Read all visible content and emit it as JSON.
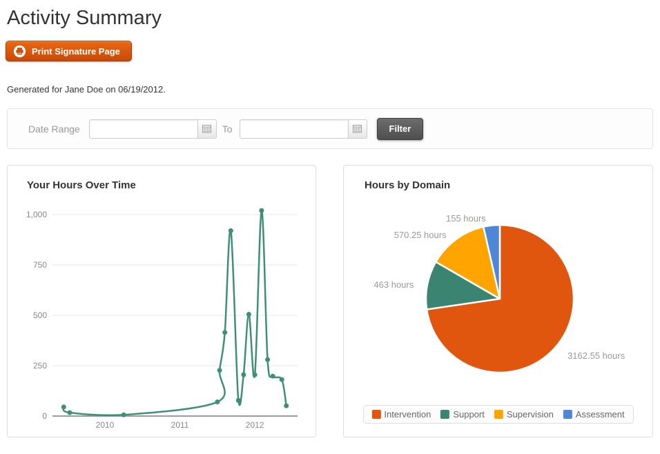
{
  "page": {
    "title": "Activity Summary",
    "print_button_label": "Print Signature Page",
    "generated_note": "Generated for Jane Doe on 06/19/2012."
  },
  "filter": {
    "date_range_label": "Date Range",
    "to_label": "To",
    "from_value": "",
    "to_value": "",
    "filter_button_label": "Filter"
  },
  "icons": {
    "print_button": "printer-icon",
    "date_inputs": "calendar-icon"
  },
  "colors": {
    "button_orange": "#D85509",
    "line_green": "#3E8E78",
    "pie_intervention": "#E0560F",
    "pie_support": "#3A8471",
    "pie_supervision": "#FFA400",
    "pie_assessment": "#4E86D8",
    "axis_text": "#888888",
    "pie_label_text": "#999999"
  },
  "chart_data": [
    {
      "type": "line",
      "title": "Your Hours Over Time",
      "series": [
        {
          "name": "Hours",
          "color": "#3E8E78",
          "x": [
            2009.45,
            2009.53,
            2010.25,
            2011.5,
            2011.53,
            2011.6,
            2011.68,
            2011.78,
            2011.85,
            2011.92,
            2012.0,
            2012.09,
            2012.17,
            2012.24,
            2012.36,
            2012.42
          ],
          "y": [
            45,
            17,
            6,
            70,
            227,
            415,
            920,
            78,
            205,
            505,
            205,
            1020,
            280,
            198,
            181,
            51
          ]
        }
      ],
      "xticks": {
        "values": [
          2010,
          2011,
          2012
        ],
        "labels": [
          "2010",
          "2011",
          "2012"
        ]
      },
      "yticks": {
        "values": [
          0,
          250,
          500,
          750,
          1000
        ],
        "labels": [
          "0",
          "250",
          "500",
          "750",
          "1,000"
        ]
      },
      "xlim": [
        2009.3,
        2012.57
      ],
      "ylim": [
        0,
        1000
      ],
      "grid": true,
      "xlabel": "",
      "ylabel": ""
    },
    {
      "type": "pie",
      "title": "Hours by Domain",
      "start_angle": 0,
      "direction": "clockwise",
      "legend_position": "bottom",
      "slices": [
        {
          "label": "Intervention",
          "value": 3162.55,
          "display": "3162.55 hours",
          "color": "#E0560F"
        },
        {
          "label": "Support",
          "value": 463,
          "display": "463 hours",
          "color": "#3A8471"
        },
        {
          "label": "Supervision",
          "value": 570.25,
          "display": "570.25 hours",
          "color": "#FFA400"
        },
        {
          "label": "Assessment",
          "value": 155,
          "display": "155 hours",
          "color": "#4E86D8"
        }
      ]
    }
  ]
}
